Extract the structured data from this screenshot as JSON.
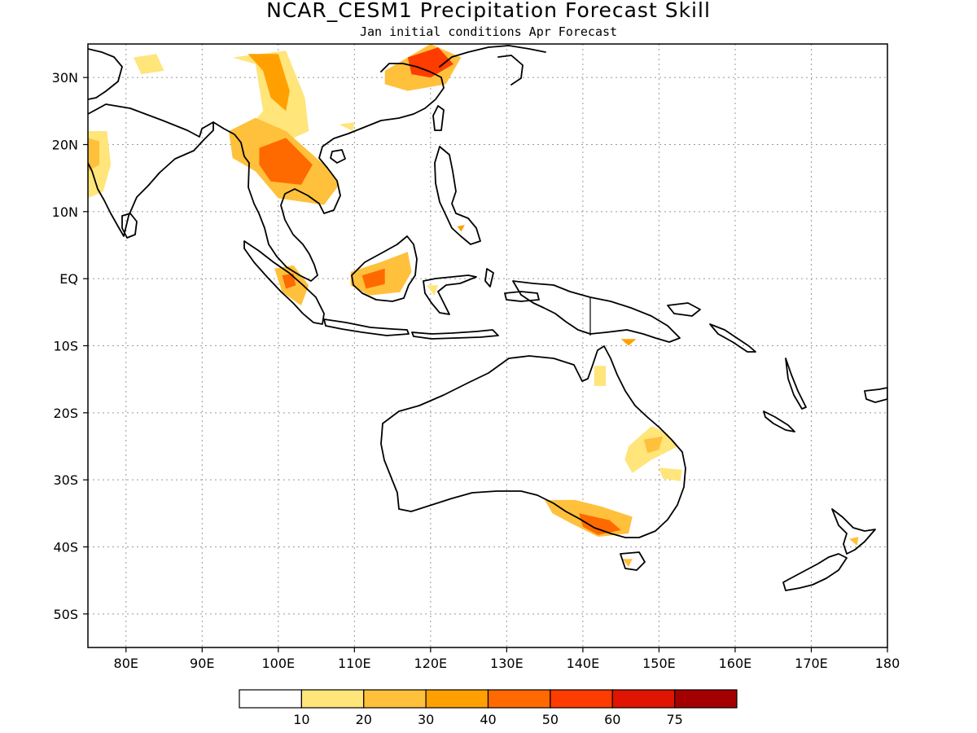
{
  "title": "NCAR_CESM1 Precipitation Forecast Skill",
  "subtitle": "Jan initial conditions  Apr Forecast",
  "map": {
    "lon_range": [
      75,
      180
    ],
    "lat_range": [
      -55,
      35
    ],
    "lon_ticks": [
      {
        "lon": 80,
        "label": "80E"
      },
      {
        "lon": 90,
        "label": "90E"
      },
      {
        "lon": 100,
        "label": "100E"
      },
      {
        "lon": 110,
        "label": "110E"
      },
      {
        "lon": 120,
        "label": "120E"
      },
      {
        "lon": 130,
        "label": "130E"
      },
      {
        "lon": 140,
        "label": "140E"
      },
      {
        "lon": 150,
        "label": "150E"
      },
      {
        "lon": 160,
        "label": "160E"
      },
      {
        "lon": 170,
        "label": "170E"
      },
      {
        "lon": 180,
        "label": "180"
      }
    ],
    "lat_ticks": [
      {
        "lat": 30,
        "label": "30N"
      },
      {
        "lat": 20,
        "label": "20N"
      },
      {
        "lat": 10,
        "label": "10N"
      },
      {
        "lat": 0,
        "label": "EQ"
      },
      {
        "lat": -10,
        "label": "10S"
      },
      {
        "lat": -20,
        "label": "20S"
      },
      {
        "lat": -30,
        "label": "30S"
      },
      {
        "lat": -40,
        "label": "40S"
      },
      {
        "lat": -50,
        "label": "50S"
      }
    ],
    "grid": true
  },
  "colorbar": {
    "colors": [
      "#ffffff",
      "#ffe57a",
      "#ffc03c",
      "#ffa000",
      "#ff6a00",
      "#ff3c00",
      "#e01400",
      "#a50000"
    ],
    "labels": [
      "10",
      "20",
      "30",
      "40",
      "50",
      "60",
      "75"
    ]
  },
  "skill_regions": [
    {
      "name": "india-west-coast",
      "level": 1,
      "points": [
        [
          75,
          22
        ],
        [
          77.5,
          22
        ],
        [
          78,
          17
        ],
        [
          77,
          13
        ],
        [
          75,
          12
        ]
      ]
    },
    {
      "name": "india-northwest-core",
      "level": 2,
      "points": [
        [
          75,
          21
        ],
        [
          76.5,
          20.5
        ],
        [
          76.5,
          17
        ],
        [
          75,
          16
        ]
      ]
    },
    {
      "name": "himalaya-patch",
      "level": 1,
      "points": [
        [
          81,
          33
        ],
        [
          84,
          33.5
        ],
        [
          85,
          31
        ],
        [
          82,
          30.5
        ]
      ]
    },
    {
      "name": "tibet-plume",
      "level": 1,
      "points": [
        [
          94,
          33
        ],
        [
          101,
          34
        ],
        [
          103.5,
          27
        ],
        [
          104,
          22
        ],
        [
          100,
          20
        ],
        [
          95,
          21
        ],
        [
          98,
          25
        ],
        [
          97,
          32
        ]
      ]
    },
    {
      "name": "tibet-plume-core",
      "level": 3,
      "points": [
        [
          96,
          33.5
        ],
        [
          100,
          33.5
        ],
        [
          101.5,
          28
        ],
        [
          101,
          25
        ],
        [
          99,
          27
        ],
        [
          98,
          31
        ]
      ]
    },
    {
      "name": "indochina",
      "level": 2,
      "points": [
        [
          93.5,
          22
        ],
        [
          97,
          24
        ],
        [
          101,
          22
        ],
        [
          106,
          17
        ],
        [
          108,
          14
        ],
        [
          106,
          11
        ],
        [
          100,
          12
        ],
        [
          97,
          16
        ],
        [
          94,
          18
        ]
      ]
    },
    {
      "name": "indochina-core",
      "level": 4,
      "points": [
        [
          97.5,
          19.5
        ],
        [
          101,
          21
        ],
        [
          104.5,
          17
        ],
        [
          103,
          14
        ],
        [
          99,
          14.5
        ],
        [
          97.5,
          17
        ]
      ]
    },
    {
      "name": "east-china-patch",
      "level": 2,
      "points": [
        [
          114,
          31
        ],
        [
          120,
          35
        ],
        [
          124,
          33
        ],
        [
          122,
          29
        ],
        [
          117,
          28
        ],
        [
          114,
          29
        ]
      ]
    },
    {
      "name": "east-china-core",
      "level": 5,
      "points": [
        [
          117,
          33
        ],
        [
          121,
          34.5
        ],
        [
          123,
          32
        ],
        [
          120,
          30
        ],
        [
          117.5,
          30.5
        ]
      ]
    },
    {
      "name": "south-china-dot",
      "level": 1,
      "points": [
        [
          108,
          23
        ],
        [
          110,
          23.3
        ],
        [
          109.8,
          22
        ]
      ]
    },
    {
      "name": "sumatra",
      "level": 2,
      "points": [
        [
          99.5,
          1.5
        ],
        [
          102,
          2
        ],
        [
          104,
          -1
        ],
        [
          103,
          -4
        ],
        [
          100.5,
          -2
        ]
      ]
    },
    {
      "name": "sumatra-core",
      "level": 4,
      "points": [
        [
          100.5,
          0.5
        ],
        [
          102,
          0.8
        ],
        [
          102.3,
          -1
        ],
        [
          101,
          -1.5
        ]
      ]
    },
    {
      "name": "borneo",
      "level": 2,
      "points": [
        [
          109.5,
          1
        ],
        [
          113.5,
          2.5
        ],
        [
          117,
          4
        ],
        [
          117.5,
          1
        ],
        [
          116,
          -2
        ],
        [
          112,
          -2.5
        ],
        [
          109.5,
          -1
        ]
      ]
    },
    {
      "name": "borneo-core",
      "level": 4,
      "points": [
        [
          111,
          0.5
        ],
        [
          114,
          1.5
        ],
        [
          114,
          -0.8
        ],
        [
          111.5,
          -1.5
        ]
      ]
    },
    {
      "name": "sulawesi-dot",
      "level": 1,
      "points": [
        [
          119.5,
          -1
        ],
        [
          121,
          -1
        ],
        [
          120.5,
          -2.5
        ]
      ]
    },
    {
      "name": "mindanao-dot",
      "level": 3,
      "points": [
        [
          123.5,
          7.8
        ],
        [
          124.5,
          8
        ],
        [
          124,
          7
        ]
      ]
    },
    {
      "name": "new-guinea-dot",
      "level": 3,
      "points": [
        [
          145,
          -9
        ],
        [
          147,
          -9
        ],
        [
          146,
          -10
        ]
      ]
    },
    {
      "name": "cape-york",
      "level": 1,
      "points": [
        [
          141.5,
          -13
        ],
        [
          143,
          -13
        ],
        [
          143,
          -16
        ],
        [
          141.5,
          -16
        ]
      ]
    },
    {
      "name": "queensland",
      "level": 1,
      "points": [
        [
          146,
          -25
        ],
        [
          149,
          -22
        ],
        [
          151,
          -23
        ],
        [
          152.5,
          -25
        ],
        [
          149,
          -27
        ],
        [
          146.5,
          -29
        ],
        [
          145.5,
          -27
        ]
      ]
    },
    {
      "name": "queensland-core",
      "level": 2,
      "points": [
        [
          148,
          -24
        ],
        [
          150.5,
          -23.5
        ],
        [
          150,
          -25.5
        ],
        [
          148.5,
          -26
        ]
      ]
    },
    {
      "name": "queensland-east",
      "level": 1,
      "points": [
        [
          150,
          -28.2
        ],
        [
          153,
          -28.5
        ],
        [
          152.8,
          -30.2
        ],
        [
          150.5,
          -29.8
        ]
      ]
    },
    {
      "name": "south-australia",
      "level": 2,
      "points": [
        [
          135,
          -33
        ],
        [
          139,
          -33
        ],
        [
          142.5,
          -34
        ],
        [
          146.5,
          -35.5
        ],
        [
          146,
          -38
        ],
        [
          142,
          -38.5
        ],
        [
          138.5,
          -36.5
        ],
        [
          136,
          -35
        ]
      ]
    },
    {
      "name": "south-australia-core",
      "level": 4,
      "points": [
        [
          139.5,
          -35
        ],
        [
          143.5,
          -36
        ],
        [
          145,
          -37.5
        ],
        [
          142,
          -38.2
        ],
        [
          140,
          -37
        ]
      ]
    },
    {
      "name": "tasmania-dot",
      "level": 2,
      "points": [
        [
          145.2,
          -41.8
        ],
        [
          146.5,
          -41.8
        ],
        [
          146,
          -43
        ]
      ]
    },
    {
      "name": "new-zealand-dot",
      "level": 2,
      "points": [
        [
          175,
          -38.8
        ],
        [
          176.2,
          -38.5
        ],
        [
          176,
          -39.8
        ]
      ]
    }
  ]
}
